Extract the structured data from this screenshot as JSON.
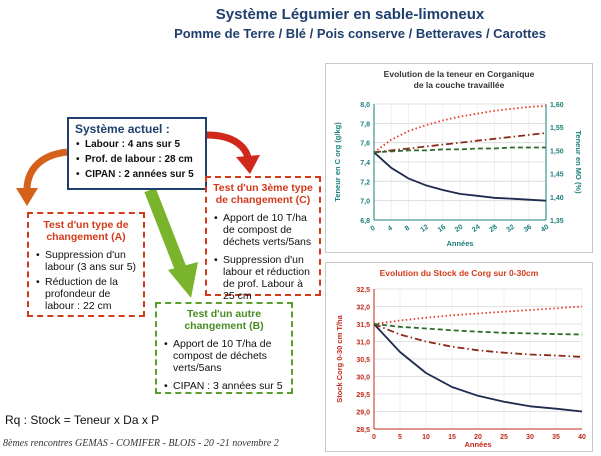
{
  "header": {
    "title": "Système Légumier en sable-limoneux",
    "subtitle": "Pomme de Terre / Blé / Pois conserve / Betteraves / Carottes"
  },
  "systeme_actuel": {
    "title": "Système actuel :",
    "items": [
      "Labour : 4 ans sur 5",
      "Prof. de labour : 28 cm",
      "CIPAN : 2 années sur 5"
    ]
  },
  "change_a": {
    "title": "Test d'un type de changement (A)",
    "items": [
      "Suppression d'un labour (3 ans sur 5)",
      "Réduction de la profondeur de labour : 22 cm"
    ]
  },
  "change_b": {
    "title": "Test d'un autre changement (B)",
    "items": [
      "Apport de 10 T/ha de compost de déchets verts/5ans",
      "CIPAN : 3 années sur 5"
    ]
  },
  "change_c": {
    "title": "Test d'un 3ème type de changement (C)",
    "items": [
      "Apport de 10 T/ha de compost de déchets verts/5ans",
      "Suppression d'un labour et réduction de prof. Labour à 25 cm"
    ]
  },
  "note": "Rq : Stock = Teneur x Da x P",
  "footer": "8èmes rencontres GEMAS - COMIFER   - BLOIS -   20 -21 novembre 2",
  "colors": {
    "navy": "#1f3f6e",
    "red": "#d23a1a",
    "green": "#5a9e2c",
    "teal": "#1a7f7a"
  },
  "chart_data": [
    {
      "type": "line",
      "title": "Evolution de la teneur en Corganique de la couche travaillée",
      "xlabel": "Années",
      "ylabel": "Teneur en C org (g/kg)",
      "ylabel_right": "Teneur en MO (%)",
      "x": [
        0,
        4,
        8,
        12,
        16,
        20,
        24,
        28,
        32,
        36,
        40
      ],
      "xticks": [
        "0",
        "4",
        "8",
        "12",
        "16",
        "20",
        "24",
        "28",
        "32",
        "36",
        "40"
      ],
      "ylim": [
        6.8,
        8.0
      ],
      "yticks": [
        "6,8",
        "7,0",
        "7,2",
        "7,4",
        "7,6",
        "7,8",
        "8,0"
      ],
      "ylim_right": [
        1.35,
        1.6
      ],
      "yticks_right": [
        "1,35",
        "1,40",
        "1,45",
        "1,50",
        "1,55",
        "1,60"
      ],
      "series": [
        {
          "color": "#1f2a4f",
          "style": "solid",
          "values": [
            7.5,
            7.34,
            7.23,
            7.16,
            7.11,
            7.07,
            7.05,
            7.03,
            7.02,
            7.01,
            7.0
          ]
        },
        {
          "color": "#e03a2a",
          "style": "dotted",
          "values": [
            7.5,
            7.63,
            7.72,
            7.78,
            7.83,
            7.87,
            7.9,
            7.93,
            7.95,
            7.97,
            7.98
          ]
        },
        {
          "color": "#8b2a1a",
          "style": "dashdot",
          "values": [
            7.5,
            7.52,
            7.54,
            7.56,
            7.58,
            7.6,
            7.62,
            7.64,
            7.66,
            7.68,
            7.7
          ]
        },
        {
          "color": "#2e6b2a",
          "style": "dashed",
          "values": [
            7.5,
            7.51,
            7.52,
            7.52,
            7.53,
            7.53,
            7.54,
            7.54,
            7.55,
            7.55,
            7.55
          ]
        }
      ]
    },
    {
      "type": "line",
      "title": "Evolution du Stock de Corg sur 0-30cm",
      "xlabel": "Années",
      "ylabel": "Stock Corg 0-30 cm T/ha",
      "x": [
        0,
        5,
        10,
        15,
        20,
        25,
        30,
        35,
        40
      ],
      "xticks": [
        "0",
        "5",
        "10",
        "15",
        "20",
        "25",
        "30",
        "35",
        "40"
      ],
      "ylim": [
        28.5,
        32.5
      ],
      "yticks": [
        "28,5",
        "29,0",
        "29,5",
        "30,0",
        "30,5",
        "31,0",
        "31,5",
        "32,0",
        "32,5"
      ],
      "series": [
        {
          "color": "#1f2a4f",
          "style": "solid",
          "values": [
            31.5,
            30.7,
            30.1,
            29.7,
            29.45,
            29.28,
            29.15,
            29.08,
            29.0
          ]
        },
        {
          "color": "#e03a2a",
          "style": "dotted",
          "values": [
            31.5,
            31.6,
            31.68,
            31.75,
            31.8,
            31.85,
            31.9,
            31.95,
            32.0
          ]
        },
        {
          "color": "#8b2a1a",
          "style": "dashdot",
          "values": [
            31.5,
            31.2,
            31.0,
            30.85,
            30.75,
            30.68,
            30.63,
            30.6,
            30.56
          ]
        },
        {
          "color": "#2e6b2a",
          "style": "dashed",
          "values": [
            31.5,
            31.42,
            31.37,
            31.32,
            31.28,
            31.25,
            31.23,
            31.21,
            31.2
          ]
        }
      ]
    }
  ]
}
